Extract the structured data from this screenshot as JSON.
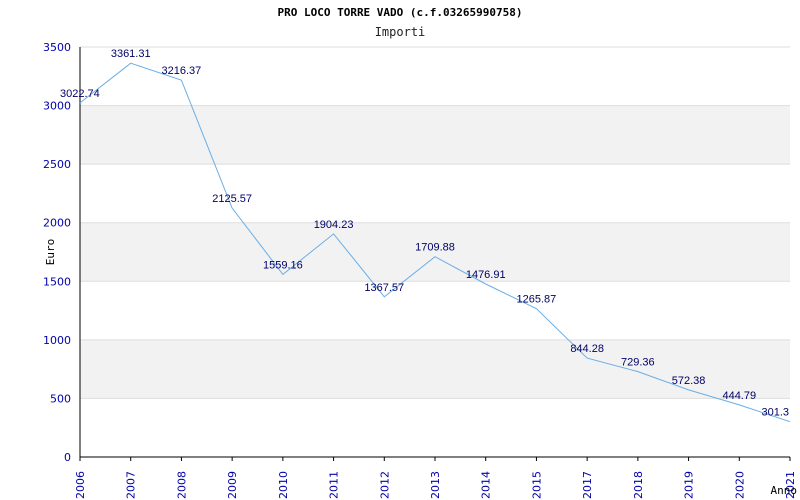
{
  "chart_data": {
    "type": "line",
    "title": "PRO LOCO TORRE VADO (c.f.03265990758)",
    "subtitle": "Importi",
    "xlabel": "Anno",
    "ylabel": "Euro",
    "ylim": [
      0,
      3500
    ],
    "yticks": [
      0,
      500,
      1000,
      1500,
      2000,
      2500,
      3000,
      3500
    ],
    "grid": true,
    "colors": {
      "line": "#6aaee6",
      "band": "#f2f2f2",
      "axis": "#000000",
      "tick_text": "#0000aa",
      "label_text": "#000066"
    },
    "categories": [
      "2006",
      "2007",
      "2008",
      "2009",
      "2010",
      "2011",
      "2012",
      "2013",
      "2014",
      "2015",
      "2017",
      "2018",
      "2019",
      "2020",
      "2021"
    ],
    "series": [
      {
        "values": [
          3022.74,
          3361.31,
          3216.37,
          2125.57,
          1559.16,
          1904.23,
          1367.57,
          1709.88,
          1476.91,
          1265.87,
          844.28,
          729.36,
          572.38,
          444.79,
          301.3
        ],
        "labels": [
          "3022.74",
          "3361.31",
          "3216.37",
          "2125.57",
          "1559.16",
          "1904.23",
          "1367.57",
          "1709.88",
          "1476.91",
          "1265.87",
          "844.28",
          "729.36",
          "572.38",
          "444.79",
          "301.3"
        ]
      }
    ]
  }
}
